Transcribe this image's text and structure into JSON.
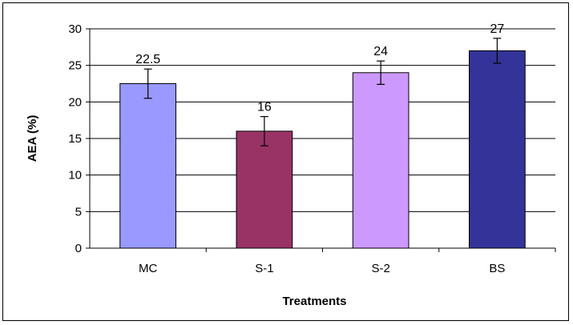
{
  "chart_data": {
    "type": "bar",
    "title": "",
    "xlabel": "Treatments",
    "ylabel": "AEA (%)",
    "ylim": [
      0,
      30
    ],
    "ytick_step": 5,
    "yticks": [
      "0",
      "5",
      "10",
      "15",
      "20",
      "25",
      "30"
    ],
    "grid": "horizontal",
    "legend": "none",
    "categories": [
      "MC",
      "S-1",
      "S-2",
      "BS"
    ],
    "values": [
      22.5,
      16,
      24,
      27
    ],
    "data_labels": [
      "22.5",
      "16",
      "24",
      "27"
    ],
    "error": [
      2,
      2,
      1.6,
      1.7
    ],
    "colors": [
      "#9999ff",
      "#993366",
      "#cc99ff",
      "#333399"
    ]
  }
}
